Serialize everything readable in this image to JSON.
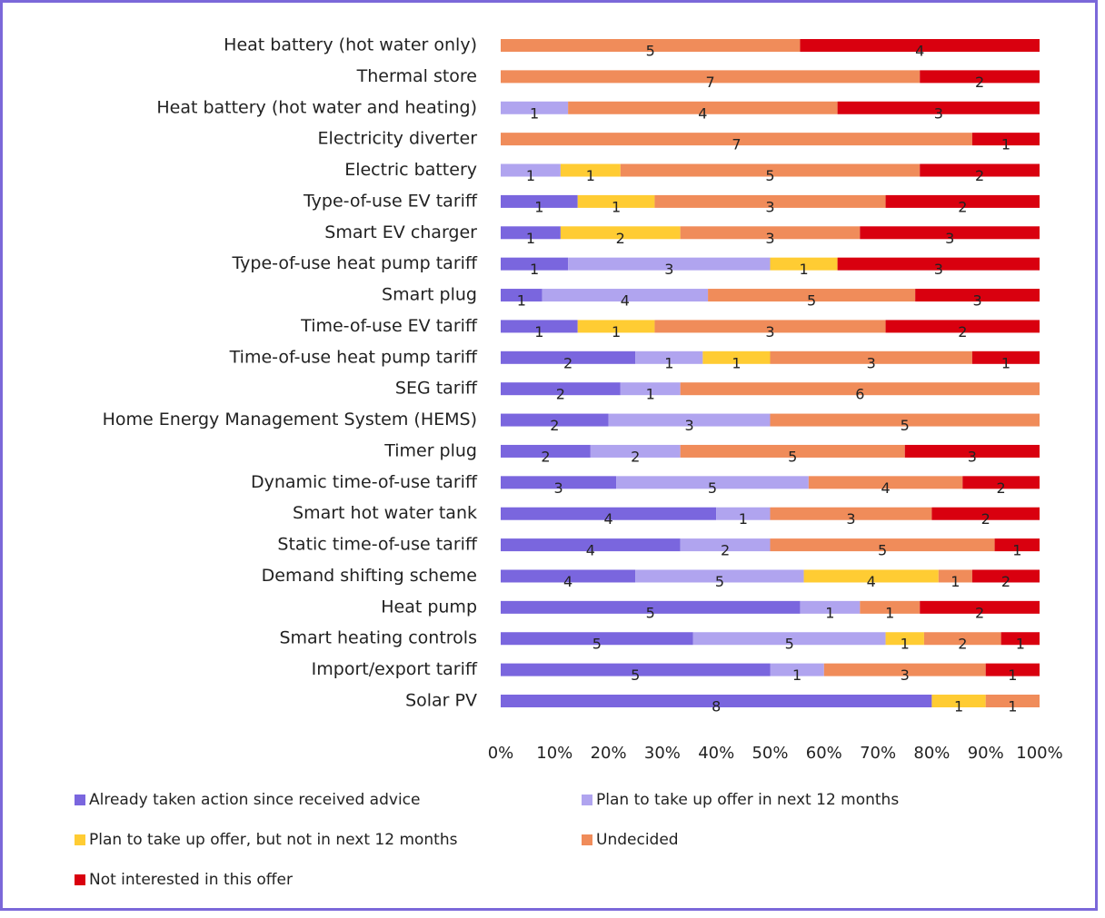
{
  "chart_data": {
    "type": "bar",
    "orientation": "horizontal",
    "stacking": "percent",
    "categories": [
      "Heat battery (hot water only)",
      "Thermal store",
      "Heat battery (hot water and heating)",
      "Electricity diverter",
      "Electric battery",
      "Type-of-use EV tariff",
      "Smart EV charger",
      "Type-of-use heat pump tariff",
      "Smart plug",
      "Time-of-use EV tariff",
      "Time-of-use heat pump tariff",
      "SEG tariff",
      "Home Energy Management System (HEMS)",
      "Timer plug",
      "Dynamic time-of-use tariff",
      "Smart hot water tank",
      "Static time-of-use tariff",
      "Demand shifting scheme",
      "Heat pump",
      "Smart heating controls",
      "Import/export tariff",
      "Solar PV"
    ],
    "series": [
      {
        "name": "Already taken action since received advice",
        "color": "#7a66de",
        "values": [
          null,
          null,
          null,
          null,
          null,
          1,
          1,
          1,
          1,
          1,
          2,
          2,
          2,
          2,
          3,
          4,
          4,
          4,
          5,
          5,
          5,
          8
        ]
      },
      {
        "name": "Plan to take up offer in next 12 months",
        "color": "#b0a4ef",
        "values": [
          null,
          null,
          1,
          null,
          1,
          null,
          null,
          3,
          4,
          null,
          1,
          1,
          3,
          2,
          5,
          1,
          2,
          5,
          1,
          5,
          1,
          null
        ]
      },
      {
        "name": "Plan to take up offer, but not in next 12 months",
        "color": "#ffcc33",
        "values": [
          null,
          null,
          null,
          null,
          1,
          1,
          2,
          1,
          null,
          1,
          1,
          null,
          null,
          null,
          null,
          null,
          null,
          4,
          null,
          1,
          null,
          1
        ]
      },
      {
        "name": "Undecided",
        "color": "#f08c5a",
        "values": [
          5,
          7,
          4,
          7,
          5,
          3,
          3,
          null,
          5,
          3,
          3,
          6,
          5,
          5,
          4,
          3,
          5,
          1,
          1,
          2,
          3,
          1
        ]
      },
      {
        "name": "Not interested in this offer",
        "color": "#d9000f",
        "values": [
          4,
          2,
          3,
          1,
          2,
          2,
          3,
          3,
          3,
          2,
          1,
          null,
          null,
          3,
          2,
          2,
          1,
          2,
          2,
          1,
          1,
          null
        ]
      }
    ],
    "xlim": [
      0,
      100
    ],
    "xticks": [
      {
        "value": 0,
        "label": "0%"
      },
      {
        "value": 10,
        "label": "10%"
      },
      {
        "value": 20,
        "label": "20%"
      },
      {
        "value": 30,
        "label": "30%"
      },
      {
        "value": 40,
        "label": "40%"
      },
      {
        "value": 50,
        "label": "50%"
      },
      {
        "value": 60,
        "label": "60%"
      },
      {
        "value": 70,
        "label": "70%"
      },
      {
        "value": 80,
        "label": "80%"
      },
      {
        "value": 90,
        "label": "90%"
      },
      {
        "value": 100,
        "label": "100%"
      }
    ],
    "legend": "bottom"
  }
}
